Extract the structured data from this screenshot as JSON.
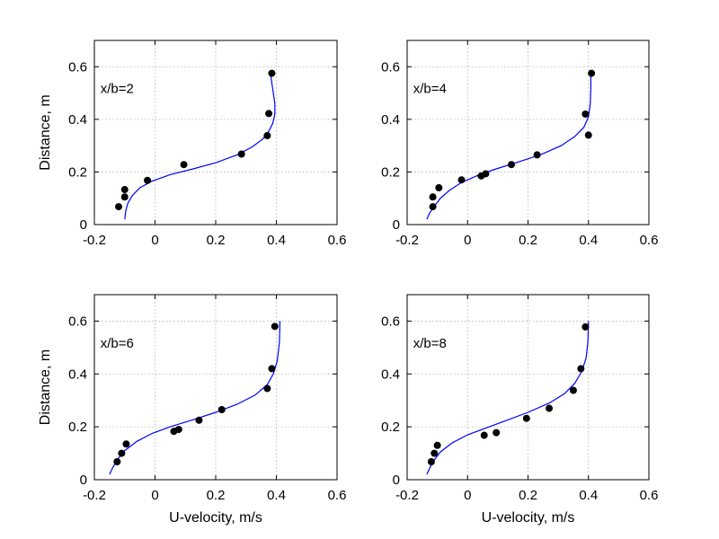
{
  "figure": {
    "x_axis_label": "U-velocity, m/s",
    "y_axis_label": "Distance, m"
  },
  "chart_data": [
    {
      "type": "scatter",
      "annotation": "x/b=2",
      "xlabel": "",
      "ylabel": "Distance, m",
      "xlim": [
        -0.2,
        0.6
      ],
      "ylim": [
        0,
        0.7
      ],
      "xticks": [
        "-0.2",
        "0",
        "0.2",
        "0.4",
        "0.6"
      ],
      "yticks": [
        "0",
        "0.2",
        "0.4",
        "0.6"
      ],
      "grid": true,
      "points": {
        "color": "#000000",
        "x": [
          -0.12,
          -0.1,
          -0.1,
          -0.025,
          0.095,
          0.285,
          0.37,
          0.375,
          0.385
        ],
        "y": [
          0.068,
          0.105,
          0.133,
          0.168,
          0.228,
          0.268,
          0.338,
          0.422,
          0.575
        ]
      },
      "curve": {
        "color": "#0000ff",
        "x": [
          -0.1,
          -0.097,
          -0.09,
          -0.075,
          -0.05,
          -0.01,
          0.05,
          0.12,
          0.2,
          0.27,
          0.32,
          0.355,
          0.375,
          0.388,
          0.395,
          0.395,
          0.39,
          0.385,
          0.38
        ],
        "y": [
          0.02,
          0.05,
          0.08,
          0.11,
          0.14,
          0.165,
          0.19,
          0.21,
          0.235,
          0.265,
          0.295,
          0.325,
          0.355,
          0.385,
          0.42,
          0.46,
          0.5,
          0.54,
          0.58
        ]
      }
    },
    {
      "type": "scatter",
      "annotation": "x/b=4",
      "xlabel": "",
      "ylabel": "",
      "xlim": [
        -0.2,
        0.6
      ],
      "ylim": [
        0,
        0.7
      ],
      "xticks": [
        "-0.2",
        "0",
        "0.2",
        "0.4",
        "0.6"
      ],
      "yticks": [
        "0",
        "0.2",
        "0.4",
        "0.6"
      ],
      "grid": true,
      "points": {
        "color": "#000000",
        "x": [
          -0.115,
          -0.115,
          -0.095,
          -0.02,
          0.045,
          0.06,
          0.145,
          0.23,
          0.39,
          0.4,
          0.41
        ],
        "y": [
          0.068,
          0.105,
          0.14,
          0.17,
          0.185,
          0.193,
          0.228,
          0.265,
          0.42,
          0.34,
          0.575
        ]
      },
      "curve": {
        "color": "#0000ff",
        "x": [
          -0.135,
          -0.125,
          -0.11,
          -0.09,
          -0.06,
          -0.02,
          0.03,
          0.09,
          0.16,
          0.24,
          0.31,
          0.355,
          0.385,
          0.4,
          0.406,
          0.408,
          0.408
        ],
        "y": [
          0.02,
          0.045,
          0.07,
          0.1,
          0.13,
          0.16,
          0.185,
          0.21,
          0.235,
          0.265,
          0.3,
          0.335,
          0.37,
          0.41,
          0.46,
          0.52,
          0.58
        ]
      }
    },
    {
      "type": "scatter",
      "annotation": "x/b=6",
      "xlabel": "U-velocity, m/s",
      "ylabel": "Distance, m",
      "xlim": [
        -0.2,
        0.6
      ],
      "ylim": [
        0,
        0.7
      ],
      "xticks": [
        "-0.2",
        "0",
        "0.2",
        "0.4",
        "0.6"
      ],
      "yticks": [
        "0",
        "0.2",
        "0.4",
        "0.6"
      ],
      "grid": true,
      "points": {
        "color": "#000000",
        "x": [
          -0.125,
          -0.11,
          -0.095,
          0.062,
          0.078,
          0.145,
          0.22,
          0.37,
          0.385,
          0.395
        ],
        "y": [
          0.068,
          0.1,
          0.135,
          0.183,
          0.19,
          0.225,
          0.265,
          0.345,
          0.42,
          0.58
        ]
      },
      "curve": {
        "color": "#0000ff",
        "x": [
          -0.15,
          -0.14,
          -0.125,
          -0.1,
          -0.06,
          -0.01,
          0.05,
          0.12,
          0.2,
          0.27,
          0.33,
          0.37,
          0.39,
          0.403,
          0.41,
          0.412
        ],
        "y": [
          0.02,
          0.045,
          0.075,
          0.11,
          0.145,
          0.175,
          0.2,
          0.225,
          0.255,
          0.285,
          0.32,
          0.36,
          0.4,
          0.45,
          0.52,
          0.6
        ]
      }
    },
    {
      "type": "scatter",
      "annotation": "x/b=8",
      "xlabel": "U-velocity, m/s",
      "ylabel": "",
      "xlim": [
        -0.2,
        0.6
      ],
      "ylim": [
        0,
        0.7
      ],
      "xticks": [
        "-0.2",
        "0",
        "0.2",
        "0.4",
        "0.6"
      ],
      "yticks": [
        "0",
        "0.2",
        "0.4",
        "0.6"
      ],
      "grid": true,
      "points": {
        "color": "#000000",
        "x": [
          -0.12,
          -0.11,
          -0.1,
          0.055,
          0.095,
          0.195,
          0.27,
          0.35,
          0.375,
          0.39
        ],
        "y": [
          0.068,
          0.1,
          0.13,
          0.168,
          0.178,
          0.232,
          0.27,
          0.338,
          0.42,
          0.578
        ]
      },
      "curve": {
        "color": "#0000ff",
        "x": [
          -0.135,
          -0.125,
          -0.11,
          -0.09,
          -0.05,
          0.0,
          0.06,
          0.13,
          0.2,
          0.27,
          0.32,
          0.355,
          0.378,
          0.392,
          0.398,
          0.4
        ],
        "y": [
          0.02,
          0.045,
          0.075,
          0.105,
          0.14,
          0.17,
          0.195,
          0.225,
          0.255,
          0.29,
          0.325,
          0.365,
          0.41,
          0.46,
          0.52,
          0.6
        ]
      }
    }
  ]
}
